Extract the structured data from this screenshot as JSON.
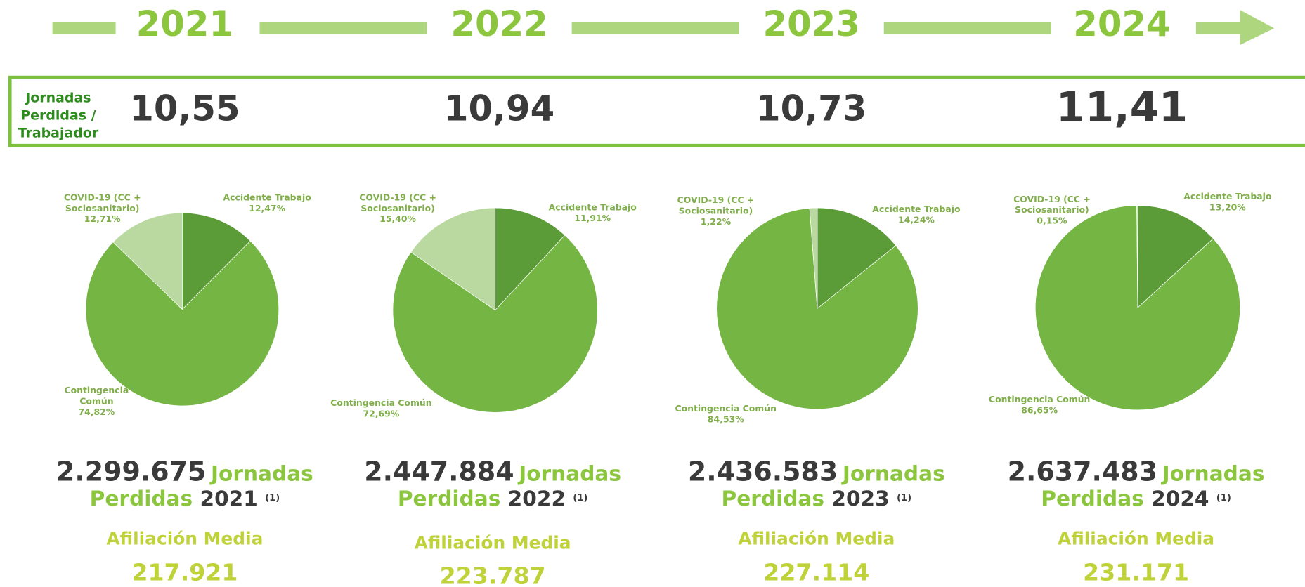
{
  "timeline": {
    "years": [
      "2021",
      "2022",
      "2023",
      "2024"
    ]
  },
  "ratio": {
    "label": "Jornadas Perdidas / Trabajador",
    "values": [
      "10,55",
      "10,94",
      "10,73",
      "11,41"
    ]
  },
  "chart_data": [
    {
      "type": "pie",
      "categories": [
        "Accidente Trabajo",
        "Contingencia Común",
        "COVID-19 (CC + Sociosanitario)"
      ],
      "values": [
        12.47,
        74.82,
        12.71
      ],
      "value_labels": [
        "12,47%",
        "74,82%",
        "12,71%"
      ],
      "colors": [
        "#5b9b38",
        "#74b544",
        "#b9d9a1"
      ]
    },
    {
      "type": "pie",
      "categories": [
        "Accidente Trabajo",
        "Contingencia Común",
        "COVID-19 (CC + Sociosanitario)"
      ],
      "values": [
        11.91,
        72.69,
        15.4
      ],
      "value_labels": [
        "11,91%",
        "72,69%",
        "15,40%"
      ],
      "colors": [
        "#5b9b38",
        "#74b544",
        "#b9d9a1"
      ]
    },
    {
      "type": "pie",
      "categories": [
        "Accidente Trabajo",
        "Contingencia Común",
        "COVID-19 (CC + Sociosanitario)"
      ],
      "values": [
        14.24,
        84.53,
        1.22
      ],
      "value_labels": [
        "14,24%",
        "84,53%",
        "1,22%"
      ],
      "colors": [
        "#5b9b38",
        "#74b544",
        "#b9d9a1"
      ]
    },
    {
      "type": "pie",
      "categories": [
        "Accidente Trabajo",
        "Contingencia Común",
        "COVID-19 (CC + Sociosanitario)"
      ],
      "values": [
        13.2,
        86.65,
        0.15
      ],
      "value_labels": [
        "13,20%",
        "86,65%",
        "0,15%"
      ],
      "colors": [
        "#5b9b38",
        "#74b544",
        "#b9d9a1"
      ]
    }
  ],
  "summaries": [
    {
      "total": "2.299.675",
      "unit1": "Jornadas",
      "unit2": "Perdidas",
      "year": "2021",
      "note": "(1)",
      "affiliation_label": "Afiliación Media",
      "affiliation": "217.921"
    },
    {
      "total": "2.447.884",
      "unit1": "Jornadas",
      "unit2": "Perdidas",
      "year": "2022",
      "note": "(1)",
      "affiliation_label": "Afiliación Media",
      "affiliation": "223.787"
    },
    {
      "total": "2.436.583",
      "unit1": "Jornadas",
      "unit2": "Perdidas",
      "year": "2023",
      "note": "(1)",
      "affiliation_label": "Afiliación Media",
      "affiliation": "227.114"
    },
    {
      "total": "2.637.483",
      "unit1": "Jornadas",
      "unit2": "Perdidas",
      "year": "2024",
      "note": "(1)",
      "affiliation_label": "Afiliación Media",
      "affiliation": "231.171"
    }
  ]
}
